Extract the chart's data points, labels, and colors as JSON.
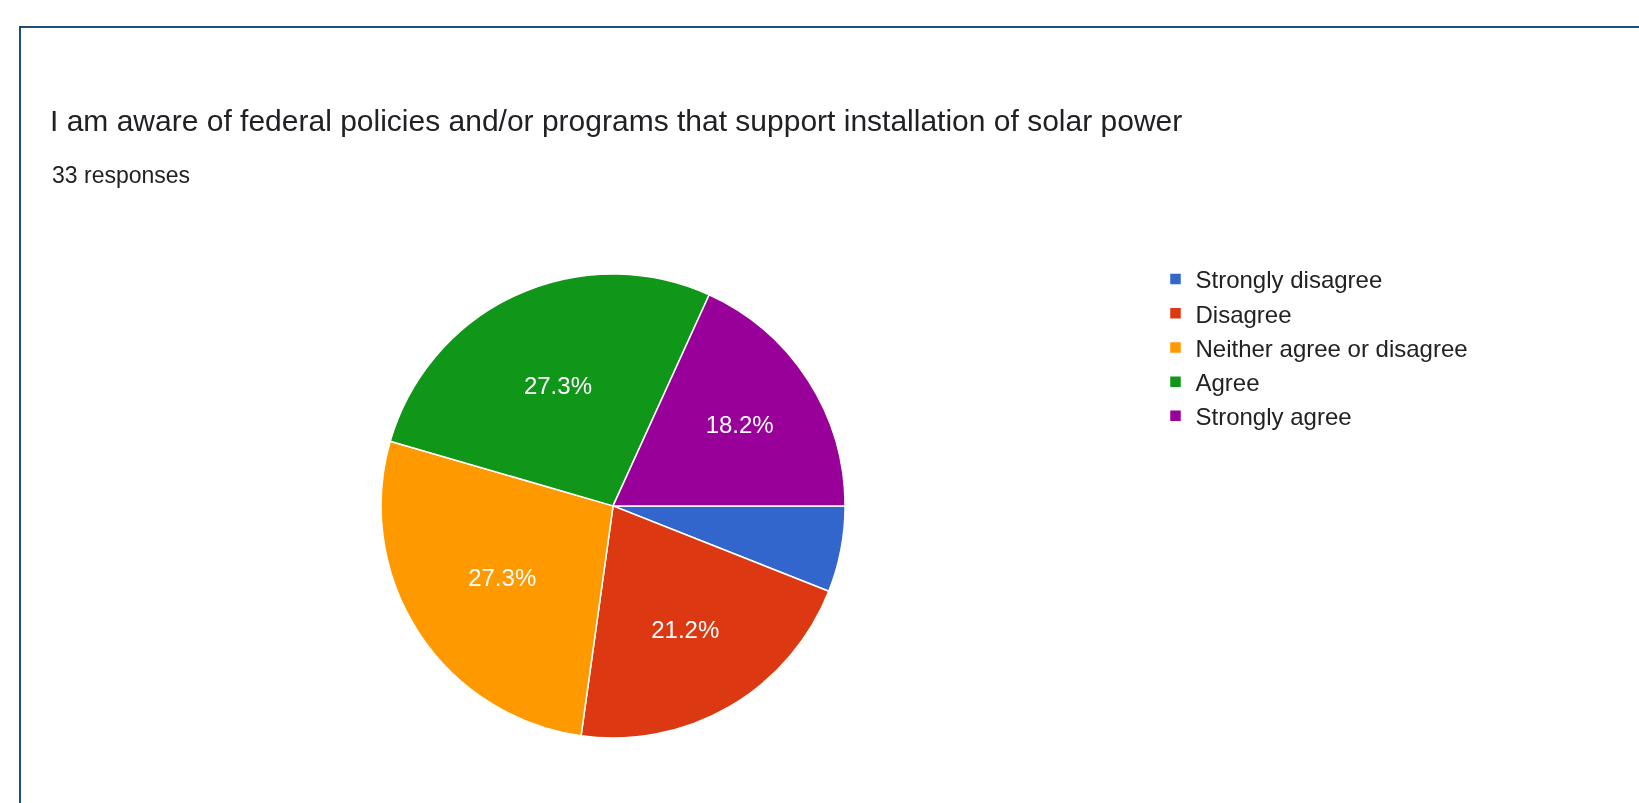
{
  "chart_data": {
    "type": "pie",
    "title": "I am aware of federal policies and/or programs that support installation of solar power",
    "subtitle": "33 responses",
    "categories": [
      "Strongly disagree",
      "Disagree",
      "Neither agree or disagree",
      "Agree",
      "Strongly agree"
    ],
    "values": [
      6.0,
      21.2,
      27.3,
      27.3,
      18.2
    ],
    "value_labels": [
      null,
      "21.2%",
      "27.3%",
      "27.3%",
      "18.2%"
    ],
    "colors": [
      "#3366cc",
      "#dc3912",
      "#ff9900",
      "#109618",
      "#990099"
    ],
    "legend": "right"
  }
}
